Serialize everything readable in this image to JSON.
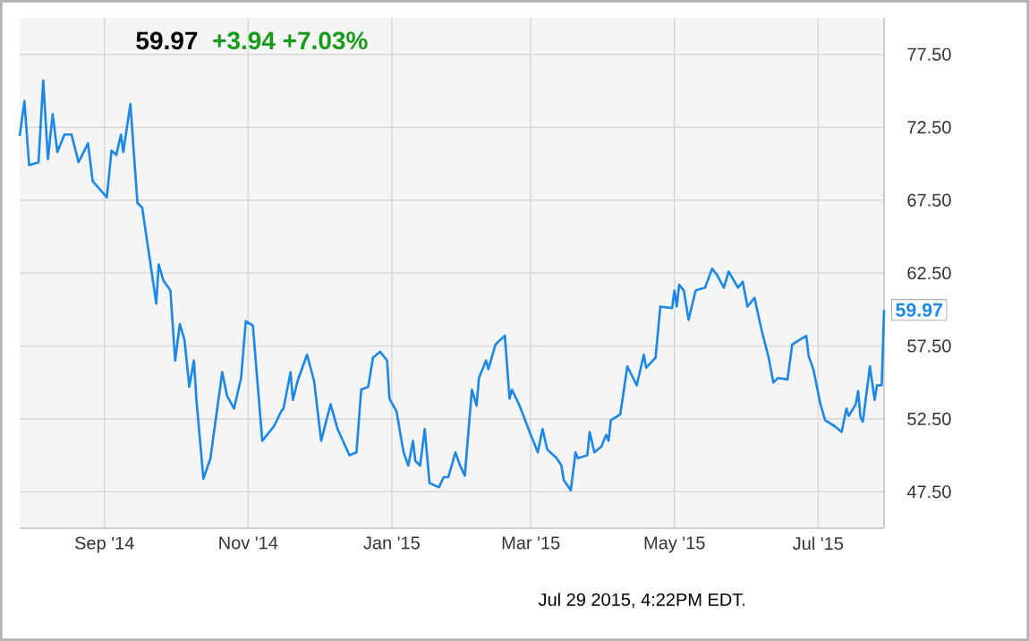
{
  "chart_data": {
    "type": "line",
    "title": "59.97",
    "subtitle": "+3.94 +7.03%",
    "annotations": [
      {
        "text": "59.97",
        "x": "2015-07-29",
        "y": 59.97
      },
      "Jul 29 2015, 4:22PM EDT."
    ],
    "x": [
      "2014-07-27",
      "2014-07-29",
      "2014-07-31",
      "2014-08-04",
      "2014-08-06",
      "2014-08-08",
      "2014-08-10",
      "2014-08-12",
      "2014-08-15",
      "2014-08-18",
      "2014-08-21",
      "2014-08-25",
      "2014-08-27",
      "2014-09-02",
      "2014-09-04",
      "2014-09-06",
      "2014-09-08",
      "2014-09-09",
      "2014-09-12",
      "2014-09-15",
      "2014-09-17",
      "2014-09-23",
      "2014-09-24",
      "2014-09-26",
      "2014-09-29",
      "2014-10-01",
      "2014-10-03",
      "2014-10-05",
      "2014-10-07",
      "2014-10-09",
      "2014-10-10",
      "2014-10-13",
      "2014-10-16",
      "2014-10-17",
      "2014-10-21",
      "2014-10-23",
      "2014-10-26",
      "2014-10-29",
      "2014-10-31",
      "2014-11-03",
      "2014-11-07",
      "2014-11-12",
      "2014-11-15",
      "2014-11-16",
      "2014-11-19",
      "2014-11-20",
      "2014-11-22",
      "2014-11-26",
      "2014-11-29",
      "2014-12-02",
      "2014-12-06",
      "2014-12-09",
      "2014-12-14",
      "2014-12-17",
      "2014-12-19",
      "2014-12-22",
      "2014-12-24",
      "2014-12-27",
      "2014-12-30",
      "2014-12-31",
      "2015-01-03",
      "2015-01-06",
      "2015-01-08",
      "2015-01-10",
      "2015-01-11",
      "2015-01-13",
      "2015-01-15",
      "2015-01-17",
      "2015-01-21",
      "2015-01-23",
      "2015-01-25",
      "2015-01-28",
      "2015-01-30",
      "2015-02-01",
      "2015-02-04",
      "2015-02-06",
      "2015-02-07",
      "2015-02-10",
      "2015-02-11",
      "2015-02-14",
      "2015-02-18",
      "2015-02-20",
      "2015-02-21",
      "2015-02-24",
      "2015-03-01",
      "2015-03-04",
      "2015-03-06",
      "2015-03-08",
      "2015-03-12",
      "2015-03-14",
      "2015-03-15",
      "2015-03-18",
      "2015-03-20",
      "2015-03-21",
      "2015-03-25",
      "2015-03-26",
      "2015-03-28",
      "2015-03-31",
      "2015-04-02",
      "2015-04-03",
      "2015-04-04",
      "2015-04-08",
      "2015-04-11",
      "2015-04-15",
      "2015-04-18",
      "2015-04-19",
      "2015-04-23",
      "2015-04-25",
      "2015-04-30",
      "2015-05-01",
      "2015-05-02",
      "2015-05-03",
      "2015-05-05",
      "2015-05-07",
      "2015-05-10",
      "2015-05-14",
      "2015-05-17",
      "2015-05-19",
      "2015-05-22",
      "2015-05-24",
      "2015-05-28",
      "2015-05-30",
      "2015-06-01",
      "2015-06-04",
      "2015-06-07",
      "2015-06-10",
      "2015-06-12",
      "2015-06-14",
      "2015-06-18",
      "2015-06-20",
      "2015-06-23",
      "2015-06-26",
      "2015-06-27",
      "2015-06-29",
      "2015-07-02",
      "2015-07-04",
      "2015-07-08",
      "2015-07-11",
      "2015-07-13",
      "2015-07-14",
      "2015-07-17",
      "2015-07-18",
      "2015-07-19",
      "2015-07-20",
      "2015-07-23",
      "2015-07-25",
      "2015-07-26",
      "2015-07-28",
      "2015-07-29"
    ],
    "series": [
      {
        "color": "#1e88e5",
        "values": [
          71.9,
          74.3,
          69.9,
          70.1,
          75.7,
          70.3,
          73.4,
          70.8,
          72.0,
          72.0,
          70.1,
          71.4,
          68.8,
          67.7,
          70.9,
          70.6,
          72.0,
          70.8,
          74.1,
          67.3,
          67.0,
          60.4,
          63.1,
          62.0,
          61.3,
          56.5,
          59.0,
          57.9,
          54.7,
          56.5,
          53.9,
          48.4,
          49.8,
          51.0,
          55.7,
          54.1,
          53.2,
          55.3,
          59.2,
          58.9,
          51.0,
          52.0,
          53.0,
          53.2,
          55.7,
          53.8,
          55.1,
          56.9,
          55.1,
          51.0,
          53.5,
          51.8,
          50.0,
          50.2,
          54.5,
          54.7,
          56.7,
          57.1,
          56.5,
          53.9,
          53.0,
          50.2,
          49.3,
          51.0,
          49.6,
          49.3,
          51.8,
          48.1,
          47.8,
          48.5,
          48.5,
          50.2,
          49.3,
          48.6,
          54.5,
          53.4,
          55.3,
          56.5,
          55.9,
          57.6,
          58.2,
          53.9,
          54.5,
          53.5,
          51.4,
          50.2,
          51.8,
          50.4,
          49.8,
          49.3,
          48.3,
          47.6,
          50.2,
          49.8,
          50.0,
          51.6,
          50.2,
          50.6,
          51.4,
          51.0,
          52.4,
          52.8,
          56.1,
          54.8,
          56.9,
          56.0,
          56.7,
          60.2,
          60.1,
          61.3,
          60.2,
          61.7,
          61.3,
          59.3,
          61.3,
          61.5,
          62.8,
          62.4,
          61.5,
          62.6,
          61.5,
          61.9,
          60.2,
          60.8,
          58.6,
          56.7,
          55.0,
          55.3,
          55.2,
          57.6,
          57.9,
          58.2,
          56.8,
          55.9,
          53.5,
          52.4,
          52.0,
          51.6,
          53.2,
          52.7,
          53.5,
          54.4,
          52.6,
          52.3,
          56.1,
          53.8,
          54.8,
          54.8,
          59.97
        ]
      }
    ],
    "xlim": [
      "2014-07-27",
      "2015-07-29"
    ],
    "xticks": [
      {
        "value": "2014-09-01",
        "label": "Sep '14"
      },
      {
        "value": "2014-11-01",
        "label": "Nov '14"
      },
      {
        "value": "2015-01-01",
        "label": "Jan '15"
      },
      {
        "value": "2015-03-01",
        "label": "Mar '15"
      },
      {
        "value": "2015-05-01",
        "label": "May '15"
      },
      {
        "value": "2015-07-01",
        "label": "Jul '15"
      }
    ],
    "ylim": [
      45,
      80
    ],
    "yticks": [
      {
        "value": 47.5,
        "label": "47.50"
      },
      {
        "value": 52.5,
        "label": "52.50"
      },
      {
        "value": 57.5,
        "label": "57.50"
      },
      {
        "value": 62.5,
        "label": "62.50"
      },
      {
        "value": 67.5,
        "label": "67.50"
      },
      {
        "value": 72.5,
        "label": "72.50"
      },
      {
        "value": 77.5,
        "label": "77.50"
      }
    ],
    "grid": true,
    "line_style": "solid"
  }
}
